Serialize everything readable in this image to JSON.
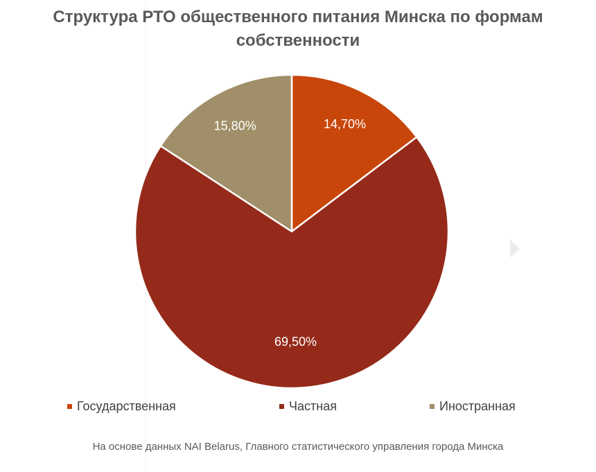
{
  "title_lines": [
    "Структура РТО общественного питания Минска по формам",
    "собственности"
  ],
  "chart_data": {
    "type": "pie",
    "title": "Структура РТО общественного питания Минска по формам собственности",
    "start_angle_deg": 0,
    "direction": "clockwise",
    "slices": [
      {
        "name": "Государственная",
        "value": 14.7,
        "label": "14,70%",
        "color": "#c9460b"
      },
      {
        "name": "Частная",
        "value": 69.5,
        "label": "69,50%",
        "color": "#952a1a"
      },
      {
        "name": "Иностранная",
        "value": 15.8,
        "label": "15,80%",
        "color": "#a08f68"
      }
    ],
    "legend_placement": "bottom"
  },
  "source_note": "На основе данных NAI Belarus, Главного статистического управления города Минска"
}
